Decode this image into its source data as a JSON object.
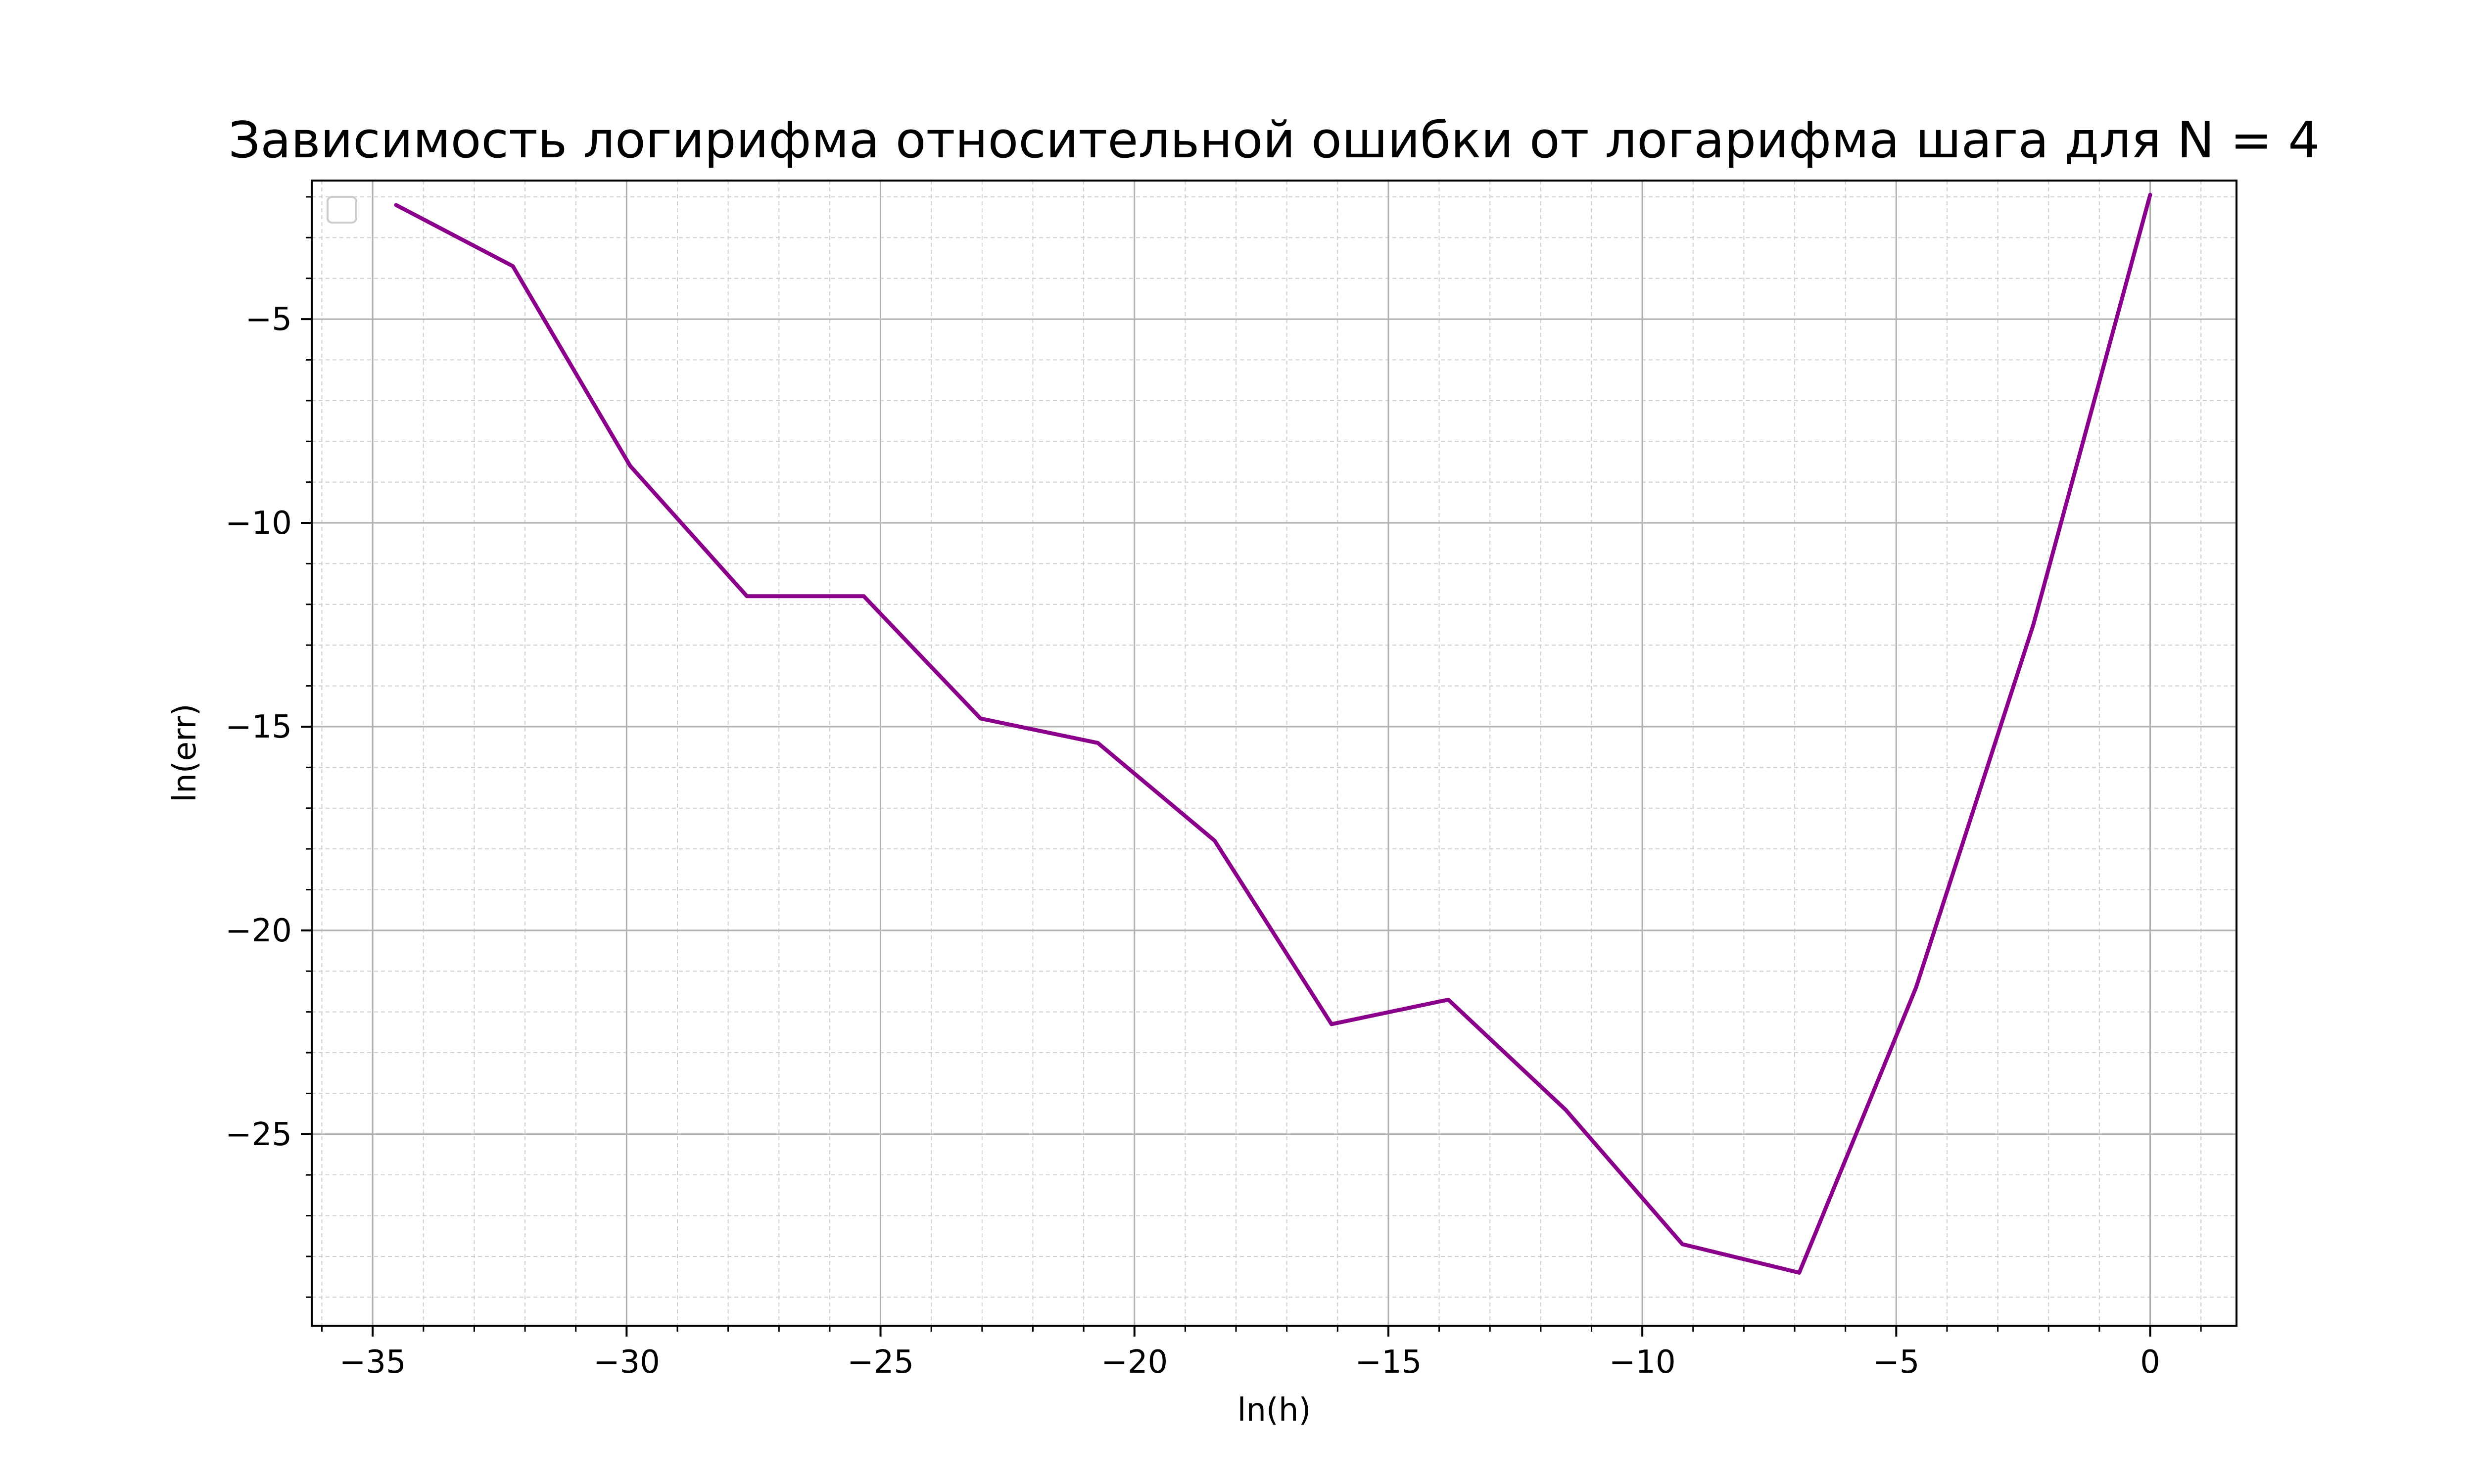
{
  "chart_data": {
    "type": "line",
    "title": "Зависимость логирифма относительной ошибки от логарифма шага для N = 4",
    "xlabel": "ln(h)",
    "ylabel": "ln(err)",
    "xlim": [
      -36.2,
      1.7
    ],
    "ylim": [
      -29.7,
      -1.6
    ],
    "x_ticks": [
      -35,
      -30,
      -25,
      -20,
      -15,
      -10,
      -5,
      0
    ],
    "x_tick_labels": [
      "−35",
      "−30",
      "−25",
      "−20",
      "−15",
      "−10",
      "−5",
      "0"
    ],
    "y_ticks": [
      -5,
      -10,
      -15,
      -20,
      -25
    ],
    "y_tick_labels": [
      "−5",
      "−10",
      "−15",
      "−20",
      "−25"
    ],
    "x_minor_step": 1,
    "y_minor_step": 1,
    "grid": true,
    "legend": {
      "placement": "top-left",
      "entries": []
    },
    "series": [
      {
        "color": "#8b008b",
        "x": [
          -34.54,
          -32.24,
          -29.93,
          -27.63,
          -25.33,
          -23.03,
          -20.72,
          -18.42,
          -16.12,
          -13.82,
          -11.51,
          -9.21,
          -6.91,
          -4.61,
          -2.3,
          0
        ],
        "y": [
          -2.2,
          -3.7,
          -8.6,
          -11.8,
          -11.8,
          -14.8,
          -15.4,
          -17.8,
          -22.3,
          -21.7,
          -24.4,
          -27.7,
          -28.4,
          -21.4,
          -12.5,
          -1.95
        ]
      }
    ]
  }
}
